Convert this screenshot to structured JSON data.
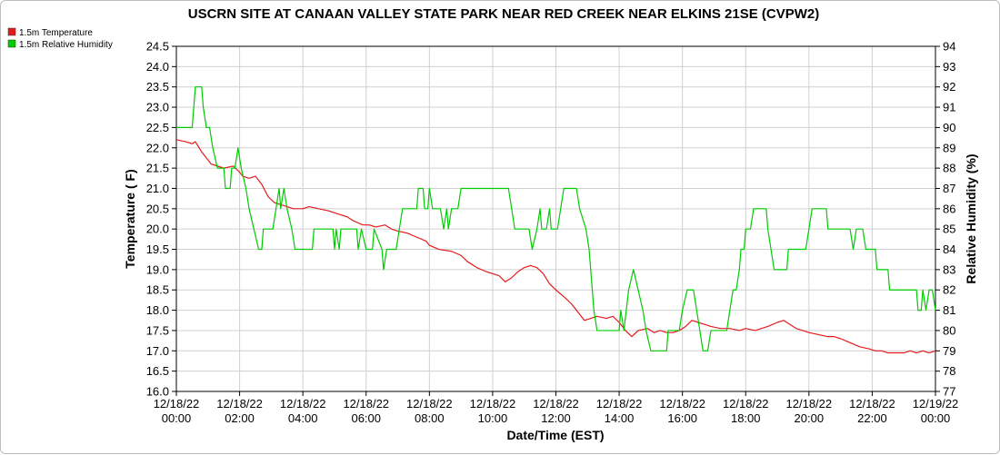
{
  "chart_data": {
    "type": "line",
    "title": "USCRN SITE AT CANAAN VALLEY STATE PARK NEAR RED CREEK NEAR ELKINS 21SE (CVPW2)",
    "xlabel": "Date/Time (EST)",
    "ylabel_left": "Temperature ( F)",
    "ylabel_right": "Relative Humidity (%)",
    "ylim_left": [
      16.0,
      24.5
    ],
    "ylim_right": [
      77,
      94
    ],
    "xlim_hours": [
      0,
      24
    ],
    "grid": true,
    "legend_position": "top-left",
    "x_tick_labels": [
      {
        "hour": 0,
        "date": "12/18/22",
        "time": "00:00"
      },
      {
        "hour": 2,
        "date": "12/18/22",
        "time": "02:00"
      },
      {
        "hour": 4,
        "date": "12/18/22",
        "time": "04:00"
      },
      {
        "hour": 6,
        "date": "12/18/22",
        "time": "06:00"
      },
      {
        "hour": 8,
        "date": "12/18/22",
        "time": "08:00"
      },
      {
        "hour": 10,
        "date": "12/18/22",
        "time": "10:00"
      },
      {
        "hour": 12,
        "date": "12/18/22",
        "time": "12:00"
      },
      {
        "hour": 14,
        "date": "12/18/22",
        "time": "14:00"
      },
      {
        "hour": 16,
        "date": "12/18/22",
        "time": "16:00"
      },
      {
        "hour": 18,
        "date": "12/18/22",
        "time": "18:00"
      },
      {
        "hour": 20,
        "date": "12/18/22",
        "time": "20:00"
      },
      {
        "hour": 22,
        "date": "12/18/22",
        "time": "22:00"
      },
      {
        "hour": 24,
        "date": "12/19/22",
        "time": "00:00"
      }
    ],
    "y_ticks_left": [
      "16.0",
      "16.5",
      "17.0",
      "17.5",
      "18.0",
      "18.5",
      "19.0",
      "19.5",
      "20.0",
      "20.5",
      "21.0",
      "21.5",
      "22.0",
      "22.5",
      "23.0",
      "23.5",
      "24.0",
      "24.5"
    ],
    "y_ticks_right": [
      "77",
      "78",
      "79",
      "80",
      "81",
      "82",
      "83",
      "84",
      "85",
      "86",
      "87",
      "88",
      "89",
      "90",
      "91",
      "92",
      "93",
      "94"
    ],
    "series": [
      {
        "name": "1.5m Temperature",
        "axis": "left",
        "color": "#e41a1c",
        "points": [
          [
            0.0,
            22.2
          ],
          [
            0.3,
            22.15
          ],
          [
            0.5,
            22.1
          ],
          [
            0.6,
            22.15
          ],
          [
            0.8,
            21.9
          ],
          [
            1.0,
            21.7
          ],
          [
            1.1,
            21.6
          ],
          [
            1.3,
            21.55
          ],
          [
            1.5,
            21.5
          ],
          [
            1.8,
            21.55
          ],
          [
            2.0,
            21.4
          ],
          [
            2.1,
            21.3
          ],
          [
            2.3,
            21.25
          ],
          [
            2.5,
            21.3
          ],
          [
            2.7,
            21.1
          ],
          [
            2.9,
            20.8
          ],
          [
            3.1,
            20.65
          ],
          [
            3.3,
            20.6
          ],
          [
            3.5,
            20.55
          ],
          [
            3.7,
            20.5
          ],
          [
            4.0,
            20.5
          ],
          [
            4.2,
            20.55
          ],
          [
            4.5,
            20.5
          ],
          [
            4.8,
            20.45
          ],
          [
            5.0,
            20.4
          ],
          [
            5.2,
            20.35
          ],
          [
            5.4,
            20.3
          ],
          [
            5.6,
            20.2
          ],
          [
            5.9,
            20.1
          ],
          [
            6.1,
            20.1
          ],
          [
            6.3,
            20.05
          ],
          [
            6.6,
            20.1
          ],
          [
            6.8,
            20.0
          ],
          [
            7.0,
            19.95
          ],
          [
            7.3,
            19.9
          ],
          [
            7.6,
            19.8
          ],
          [
            7.9,
            19.7
          ],
          [
            8.0,
            19.6
          ],
          [
            8.3,
            19.5
          ],
          [
            8.7,
            19.45
          ],
          [
            9.0,
            19.35
          ],
          [
            9.2,
            19.2
          ],
          [
            9.5,
            19.05
          ],
          [
            9.8,
            18.95
          ],
          [
            10.0,
            18.9
          ],
          [
            10.2,
            18.85
          ],
          [
            10.4,
            18.7
          ],
          [
            10.6,
            18.8
          ],
          [
            10.8,
            18.95
          ],
          [
            11.0,
            19.05
          ],
          [
            11.2,
            19.1
          ],
          [
            11.4,
            19.05
          ],
          [
            11.6,
            18.9
          ],
          [
            11.8,
            18.65
          ],
          [
            12.0,
            18.5
          ],
          [
            12.3,
            18.3
          ],
          [
            12.5,
            18.15
          ],
          [
            12.7,
            17.95
          ],
          [
            12.9,
            17.75
          ],
          [
            13.1,
            17.8
          ],
          [
            13.3,
            17.85
          ],
          [
            13.6,
            17.8
          ],
          [
            13.8,
            17.85
          ],
          [
            14.0,
            17.7
          ],
          [
            14.2,
            17.5
          ],
          [
            14.4,
            17.35
          ],
          [
            14.6,
            17.5
          ],
          [
            14.9,
            17.55
          ],
          [
            15.1,
            17.45
          ],
          [
            15.3,
            17.5
          ],
          [
            15.5,
            17.45
          ],
          [
            15.7,
            17.45
          ],
          [
            15.9,
            17.5
          ],
          [
            16.1,
            17.6
          ],
          [
            16.3,
            17.75
          ],
          [
            16.5,
            17.7
          ],
          [
            16.7,
            17.65
          ],
          [
            16.9,
            17.6
          ],
          [
            17.2,
            17.55
          ],
          [
            17.5,
            17.55
          ],
          [
            17.8,
            17.5
          ],
          [
            18.0,
            17.55
          ],
          [
            18.3,
            17.5
          ],
          [
            18.5,
            17.55
          ],
          [
            18.7,
            17.6
          ],
          [
            19.0,
            17.7
          ],
          [
            19.2,
            17.75
          ],
          [
            19.4,
            17.65
          ],
          [
            19.6,
            17.55
          ],
          [
            19.8,
            17.5
          ],
          [
            20.0,
            17.45
          ],
          [
            20.3,
            17.4
          ],
          [
            20.6,
            17.35
          ],
          [
            20.8,
            17.35
          ],
          [
            21.0,
            17.3
          ],
          [
            21.3,
            17.2
          ],
          [
            21.6,
            17.1
          ],
          [
            21.9,
            17.05
          ],
          [
            22.1,
            17.0
          ],
          [
            22.3,
            17.0
          ],
          [
            22.5,
            16.95
          ],
          [
            22.7,
            16.95
          ],
          [
            23.0,
            16.95
          ],
          [
            23.2,
            17.0
          ],
          [
            23.4,
            16.95
          ],
          [
            23.6,
            17.0
          ],
          [
            23.8,
            16.95
          ],
          [
            24.0,
            17.0
          ]
        ]
      },
      {
        "name": "1.5m Relative Humidity",
        "axis": "right",
        "color": "#00cc00",
        "points": [
          [
            0.0,
            90
          ],
          [
            0.5,
            90
          ],
          [
            0.55,
            91
          ],
          [
            0.6,
            92
          ],
          [
            0.8,
            92
          ],
          [
            0.85,
            91
          ],
          [
            0.95,
            90
          ],
          [
            1.05,
            90
          ],
          [
            1.15,
            89
          ],
          [
            1.3,
            88
          ],
          [
            1.5,
            88
          ],
          [
            1.55,
            87
          ],
          [
            1.7,
            87
          ],
          [
            1.75,
            88
          ],
          [
            1.85,
            88
          ],
          [
            1.95,
            89
          ],
          [
            2.05,
            88
          ],
          [
            2.2,
            87
          ],
          [
            2.3,
            86
          ],
          [
            2.45,
            85
          ],
          [
            2.6,
            84
          ],
          [
            2.7,
            84
          ],
          [
            2.75,
            85
          ],
          [
            3.05,
            85
          ],
          [
            3.15,
            86
          ],
          [
            3.25,
            87
          ],
          [
            3.3,
            86
          ],
          [
            3.4,
            87
          ],
          [
            3.5,
            86
          ],
          [
            3.65,
            85
          ],
          [
            3.75,
            84
          ],
          [
            4.3,
            84
          ],
          [
            4.35,
            85
          ],
          [
            4.95,
            85
          ],
          [
            5.0,
            84
          ],
          [
            5.05,
            85
          ],
          [
            5.15,
            84
          ],
          [
            5.2,
            85
          ],
          [
            5.7,
            85
          ],
          [
            5.75,
            84
          ],
          [
            5.85,
            85
          ],
          [
            6.0,
            84
          ],
          [
            6.2,
            84
          ],
          [
            6.25,
            85
          ],
          [
            6.5,
            84
          ],
          [
            6.55,
            83
          ],
          [
            6.65,
            84
          ],
          [
            6.95,
            84
          ],
          [
            7.05,
            85
          ],
          [
            7.15,
            86
          ],
          [
            7.6,
            86
          ],
          [
            7.65,
            87
          ],
          [
            7.8,
            87
          ],
          [
            7.85,
            86
          ],
          [
            7.95,
            86
          ],
          [
            8.0,
            87
          ],
          [
            8.1,
            86
          ],
          [
            8.35,
            86
          ],
          [
            8.45,
            85
          ],
          [
            8.55,
            86
          ],
          [
            8.6,
            85
          ],
          [
            8.7,
            86
          ],
          [
            8.9,
            86
          ],
          [
            9.0,
            87
          ],
          [
            10.5,
            87
          ],
          [
            10.6,
            86
          ],
          [
            10.7,
            85
          ],
          [
            11.15,
            85
          ],
          [
            11.25,
            84
          ],
          [
            11.4,
            85
          ],
          [
            11.5,
            86
          ],
          [
            11.55,
            85
          ],
          [
            11.7,
            85
          ],
          [
            11.8,
            86
          ],
          [
            11.85,
            85
          ],
          [
            12.05,
            85
          ],
          [
            12.15,
            86
          ],
          [
            12.25,
            87
          ],
          [
            12.65,
            87
          ],
          [
            12.75,
            86
          ],
          [
            12.95,
            85
          ],
          [
            13.05,
            84
          ],
          [
            13.1,
            83
          ],
          [
            13.2,
            81
          ],
          [
            13.3,
            80
          ],
          [
            13.5,
            80
          ],
          [
            13.6,
            80
          ],
          [
            14.0,
            80
          ],
          [
            14.05,
            81
          ],
          [
            14.15,
            80
          ],
          [
            14.3,
            82
          ],
          [
            14.45,
            83
          ],
          [
            14.6,
            82
          ],
          [
            14.75,
            81
          ],
          [
            14.85,
            80
          ],
          [
            15.0,
            79
          ],
          [
            15.5,
            79
          ],
          [
            15.55,
            80
          ],
          [
            15.9,
            80
          ],
          [
            16.0,
            81
          ],
          [
            16.15,
            82
          ],
          [
            16.35,
            82
          ],
          [
            16.45,
            81
          ],
          [
            16.55,
            80
          ],
          [
            16.65,
            79
          ],
          [
            16.8,
            79
          ],
          [
            16.9,
            80
          ],
          [
            17.4,
            80
          ],
          [
            17.5,
            81
          ],
          [
            17.6,
            82
          ],
          [
            17.7,
            82
          ],
          [
            17.8,
            83
          ],
          [
            17.85,
            84
          ],
          [
            17.95,
            84
          ],
          [
            18.0,
            85
          ],
          [
            18.15,
            85
          ],
          [
            18.25,
            86
          ],
          [
            18.65,
            86
          ],
          [
            18.7,
            85
          ],
          [
            18.8,
            84
          ],
          [
            18.9,
            83
          ],
          [
            19.3,
            83
          ],
          [
            19.35,
            84
          ],
          [
            19.9,
            84
          ],
          [
            20.0,
            85
          ],
          [
            20.1,
            86
          ],
          [
            20.55,
            86
          ],
          [
            20.6,
            85
          ],
          [
            21.3,
            85
          ],
          [
            21.4,
            84
          ],
          [
            21.5,
            85
          ],
          [
            21.7,
            85
          ],
          [
            21.8,
            84
          ],
          [
            22.1,
            84
          ],
          [
            22.15,
            83
          ],
          [
            22.5,
            83
          ],
          [
            22.55,
            82
          ],
          [
            23.4,
            82
          ],
          [
            23.45,
            81
          ],
          [
            23.55,
            81
          ],
          [
            23.6,
            82
          ],
          [
            23.7,
            81
          ],
          [
            23.8,
            82
          ],
          [
            23.9,
            82
          ],
          [
            24.0,
            81
          ]
        ]
      }
    ]
  }
}
